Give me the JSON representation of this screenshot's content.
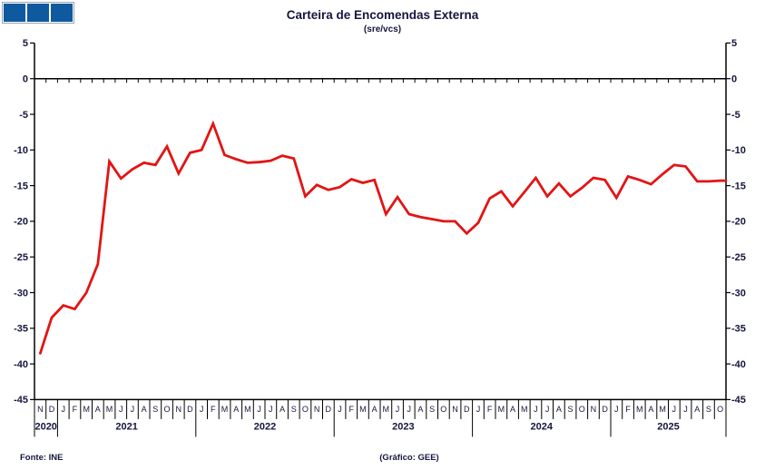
{
  "header": {
    "title": "Carteira de Encomendas Externa",
    "subtitle": "(sre/vcs)"
  },
  "logo": {
    "squares": 3,
    "color": "#0f5a9e"
  },
  "footer": {
    "source": "Fonte: INE",
    "credit": "(Gráfico: GEE)"
  },
  "colors": {
    "line": "#e31414",
    "axis": "#000000",
    "text": "#15153f"
  },
  "chart_data": {
    "type": "line",
    "title": "Carteira de Encomendas Externa",
    "subtitle": "(sre/vcs)",
    "ylim": [
      -45,
      5
    ],
    "ytick_step": 5,
    "grid": false,
    "zero_line": true,
    "dual_y_axis": true,
    "legend_position": "none",
    "x_months": [
      "N",
      "D",
      "J",
      "F",
      "M",
      "A",
      "M",
      "J",
      "J",
      "A",
      "S",
      "O",
      "N",
      "D",
      "J",
      "F",
      "M",
      "A",
      "M",
      "J",
      "J",
      "A",
      "S",
      "O",
      "N",
      "D",
      "J",
      "F",
      "M",
      "A",
      "M",
      "J",
      "J",
      "A",
      "S",
      "O",
      "N",
      "D",
      "J",
      "F",
      "M",
      "A",
      "M",
      "J",
      "J",
      "A",
      "S",
      "O",
      "N",
      "D",
      "J",
      "F",
      "M",
      "A",
      "M",
      "J",
      "J",
      "A",
      "S",
      "O"
    ],
    "years": [
      {
        "label": "2020",
        "start": 0,
        "count": 2
      },
      {
        "label": "2021",
        "start": 2,
        "count": 12
      },
      {
        "label": "2022",
        "start": 14,
        "count": 12
      },
      {
        "label": "2023",
        "start": 26,
        "count": 12
      },
      {
        "label": "2024",
        "start": 38,
        "count": 12
      },
      {
        "label": "2025",
        "start": 50,
        "count": 10
      }
    ],
    "series": [
      {
        "name": "Carteira de Encomendas Externa (sre/vcs)",
        "color": "#e31414",
        "values": [
          -38.5,
          -33.5,
          -31.8,
          -32.3,
          -30.0,
          -26.0,
          -11.6,
          -14.0,
          -12.7,
          -11.8,
          -12.1,
          -9.5,
          -13.3,
          -10.4,
          -10.0,
          -6.3,
          -10.7,
          -11.3,
          -11.8,
          -11.7,
          -11.5,
          -10.8,
          -11.2,
          -16.5,
          -14.9,
          -15.6,
          -15.2,
          -14.1,
          -14.6,
          -14.2,
          -19.0,
          -16.6,
          -19.0,
          -19.4,
          -19.7,
          -20.0,
          -20.0,
          -21.7,
          -20.2,
          -16.8,
          -15.8,
          -17.9,
          -15.9,
          -13.9,
          -16.5,
          -14.7,
          -16.5,
          -15.3,
          -13.9,
          -14.2,
          -16.7,
          -13.7,
          -14.2,
          -14.8,
          -13.4,
          -12.1,
          -12.3,
          -14.4,
          -14.4,
          -14.3
        ]
      }
    ]
  }
}
